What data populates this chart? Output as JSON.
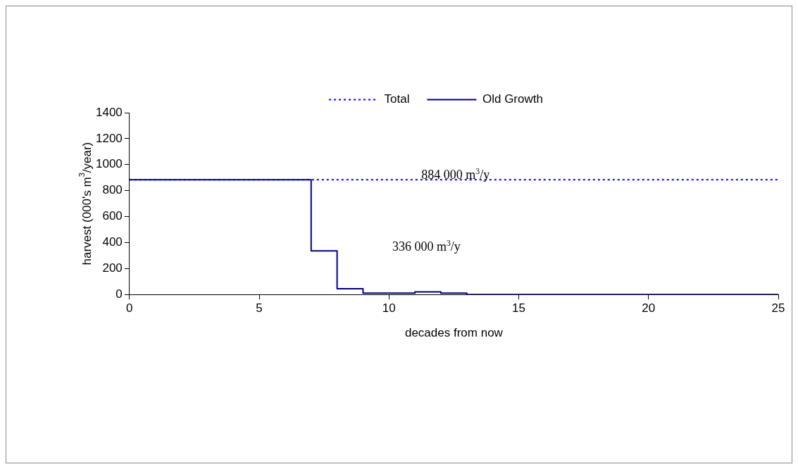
{
  "chart_data": {
    "type": "step",
    "xlabel": "decades from now",
    "ylabel": "harvest (000's m$^{3}$/year)",
    "xlim": [
      0,
      25
    ],
    "xticks": [
      0,
      5,
      10,
      15,
      20,
      25
    ],
    "ylim": [
      0,
      1400
    ],
    "yticks": [
      0,
      200,
      400,
      600,
      800,
      1000,
      1200,
      1400
    ],
    "grid": false,
    "legend": "top right",
    "series": [
      {
        "name": "Total",
        "type": "line",
        "line_style": "dotted",
        "color": "#0000ff",
        "x": [
          0,
          25
        ],
        "values": [
          884,
          884
        ]
      },
      {
        "name": "Old Growth",
        "line_style": "solid",
        "color": "#000080",
        "x": [
          0,
          7,
          8,
          9,
          11,
          12,
          13,
          25
        ],
        "values": [
          884,
          336,
          45,
          10,
          20,
          10,
          0,
          0
        ]
      }
    ],
    "annotations": [
      "884 000 m$^{3}$/y",
      "336 000 m$^{3}$/y"
    ]
  }
}
